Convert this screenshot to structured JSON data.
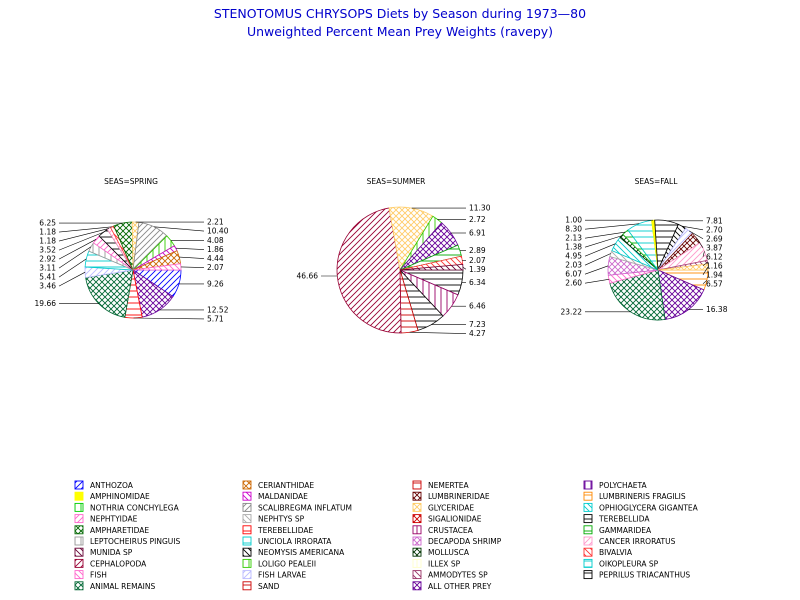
{
  "chart_data": {
    "type": "pie",
    "title": "STENOTOMUS CHRYSOPS Diets by Season during 1973—80",
    "subtitle": "Unweighted Percent Mean Prey Weights (ravepy)",
    "legend_position": "bottom",
    "categories": [
      {
        "name": "ANTHOZOA",
        "color": "#0000ff",
        "pattern": "diag-r"
      },
      {
        "name": "CERIANTHIDAE",
        "color": "#cc6600",
        "pattern": "cross"
      },
      {
        "name": "NEMERTEA",
        "color": "#cc0000",
        "pattern": "horiz"
      },
      {
        "name": "POLYCHAETA",
        "color": "#660099",
        "pattern": "vert"
      },
      {
        "name": "AMPHINOMIDAE",
        "color": "#ffff00",
        "pattern": "solid"
      },
      {
        "name": "MALDANIDAE",
        "color": "#cc00cc",
        "pattern": "diag-l"
      },
      {
        "name": "LUMBRINERIDAE",
        "color": "#660000",
        "pattern": "cross"
      },
      {
        "name": "LUMBRINERIS FRAGILIS",
        "color": "#ff8800",
        "pattern": "horiz"
      },
      {
        "name": "NOTHRIA CONCHYLEGA",
        "color": "#00cc00",
        "pattern": "vert"
      },
      {
        "name": "SCALIBREGMA INFLATUM",
        "color": "#888888",
        "pattern": "diag-r"
      },
      {
        "name": "GLYCERIDAE",
        "color": "#ffcc66",
        "pattern": "cross"
      },
      {
        "name": "OPHIOGLYCERA GIGANTEA",
        "color": "#00cccc",
        "pattern": "diag-l"
      },
      {
        "name": "NEPHTYIDAE",
        "color": "#ff66cc",
        "pattern": "diag-r"
      },
      {
        "name": "NEPHTYS SP",
        "color": "#aaaaaa",
        "pattern": "diag-l"
      },
      {
        "name": "SIGALIONIDAE",
        "color": "#cc0000",
        "pattern": "cross"
      },
      {
        "name": "TEREBELLIDA",
        "color": "#000000",
        "pattern": "horiz"
      },
      {
        "name": "AMPHARETIDAE",
        "color": "#006600",
        "pattern": "cross"
      },
      {
        "name": "TEREBELLIDAE",
        "color": "#ff0000",
        "pattern": "horiz"
      },
      {
        "name": "CRUSTACEA",
        "color": "#990066",
        "pattern": "vert"
      },
      {
        "name": "GAMMARIDEA",
        "color": "#00aa00",
        "pattern": "horiz"
      },
      {
        "name": "LEPTOCHEIRUS PINGUIS",
        "color": "#999999",
        "pattern": "vert"
      },
      {
        "name": "UNCIOLA IRRORATA",
        "color": "#00cccc",
        "pattern": "horiz"
      },
      {
        "name": "DECAPODA SHRIMP",
        "color": "#cc66cc",
        "pattern": "cross"
      },
      {
        "name": "CANCER IRRORATUS",
        "color": "#ff99cc",
        "pattern": "diag-r"
      },
      {
        "name": "MUNIDA SP",
        "color": "#660033",
        "pattern": "diag-l"
      },
      {
        "name": "NEOMYSIS AMERICANA",
        "color": "#000000",
        "pattern": "diag-l"
      },
      {
        "name": "MOLLUSCA",
        "color": "#003300",
        "pattern": "cross"
      },
      {
        "name": "BIVALVIA",
        "color": "#ff3333",
        "pattern": "diag-l"
      },
      {
        "name": "CEPHALOPODA",
        "color": "#990033",
        "pattern": "diag-r"
      },
      {
        "name": "LOLIGO PEALEII",
        "color": "#33cc00",
        "pattern": "vert"
      },
      {
        "name": "ILLEX SP",
        "color": "#ffffcc",
        "pattern": "vert"
      },
      {
        "name": "OIKOPLEURA SP",
        "color": "#00cccc",
        "pattern": "horiz"
      },
      {
        "name": "FISH",
        "color": "#ff66cc",
        "pattern": "diag-l"
      },
      {
        "name": "FISH LARVAE",
        "color": "#bbbbff",
        "pattern": "diag-r"
      },
      {
        "name": "AMMODYTES SP",
        "color": "#993366",
        "pattern": "diag-l"
      },
      {
        "name": "PEPRILUS TRIACANTHUS",
        "color": "#000000",
        "pattern": "horiz"
      },
      {
        "name": "ANIMAL REMAINS",
        "color": "#006633",
        "pattern": "cross"
      },
      {
        "name": "SAND",
        "color": "#cc0000",
        "pattern": "horiz"
      },
      {
        "name": "ALL OTHER PREY",
        "color": "#660099",
        "pattern": "cross"
      }
    ],
    "pies": [
      {
        "label": "SEAS=SPRING",
        "slices": [
          {
            "category": "ANTHOZOA",
            "value": 9.26
          },
          {
            "category": "ALL OTHER PREY",
            "value": 12.52
          },
          {
            "category": "TEREBELLIDAE",
            "value": 5.71
          },
          {
            "category": "ANIMAL REMAINS",
            "value": 19.66
          },
          {
            "category": "FISH LARVAE",
            "value": 3.46
          },
          {
            "category": "UNCIOLA IRRORATA",
            "value": 5.41
          },
          {
            "category": "LEPTOCHEIRUS PINGUIS",
            "value": 3.11
          },
          {
            "category": "NEPHTYIDAE",
            "value": 2.92
          },
          {
            "category": "TEREBELLIDA",
            "value": 3.52
          },
          {
            "category": "CANCER IRRORATUS",
            "value": 1.18
          },
          {
            "category": "BIVALVIA",
            "value": 1.18
          },
          {
            "category": "AMPHARETIDAE",
            "value": 6.25
          },
          {
            "category": "GLYCERIDAE",
            "value": 2.21
          },
          {
            "category": "SCALIBREGMA INFLATUM",
            "value": 10.4
          },
          {
            "category": "LOLIGO PEALEII",
            "value": 4.08
          },
          {
            "category": "MALDANIDAE",
            "value": 1.86
          },
          {
            "category": "CERIANTHIDAE",
            "value": 4.44
          },
          {
            "category": "FISH",
            "value": 2.07
          }
        ]
      },
      {
        "label": "SEAS=SUMMER",
        "slices": [
          {
            "category": "TEREBELLIDA",
            "value": 6.34
          },
          {
            "category": "CRUSTACEA",
            "value": 6.46
          },
          {
            "category": "PEPRILUS TRIACANTHUS",
            "value": 7.23
          },
          {
            "category": "SAND",
            "value": 4.27
          },
          {
            "category": "CEPHALOPODA",
            "value": 46.66
          },
          {
            "category": "GLYCERIDAE",
            "value": 11.3
          },
          {
            "category": "LOLIGO PEALEII",
            "value": 2.72
          },
          {
            "category": "ALL OTHER PREY",
            "value": 6.91
          },
          {
            "category": "GAMMARIDEA",
            "value": 2.89
          },
          {
            "category": "BIVALVIA",
            "value": 2.07
          },
          {
            "category": "MUNIDA SP",
            "value": 1.39
          }
        ]
      },
      {
        "label": "SEAS=FALL",
        "slices": [
          {
            "category": "LUMBRINERIS FRAGILIS",
            "value": 6.57
          },
          {
            "category": "ALL OTHER PREY",
            "value": 16.38
          },
          {
            "category": "ANIMAL REMAINS",
            "value": 23.22
          },
          {
            "category": "FISH",
            "value": 2.6
          },
          {
            "category": "DECAPODA SHRIMP",
            "value": 6.07
          },
          {
            "category": "NEPHTYS SP",
            "value": 2.03
          },
          {
            "category": "OPHIOGLYCERA GIGANTEA",
            "value": 4.95
          },
          {
            "category": "MOLLUSCA",
            "value": 1.38
          },
          {
            "category": "GAMMARIDEA",
            "value": 2.13
          },
          {
            "category": "UNCIOLA IRRORATA",
            "value": 8.3
          },
          {
            "category": "AMPHINOMIDAE",
            "value": 1.0
          },
          {
            "category": "TEREBELLIDA",
            "value": 7.81
          },
          {
            "category": "NEOMYSIS AMERICANA",
            "value": 2.7
          },
          {
            "category": "FISH LARVAE",
            "value": 2.69
          },
          {
            "category": "LUMBRINERIDAE",
            "value": 3.87
          },
          {
            "category": "CANCER IRRORATUS",
            "value": 6.12
          },
          {
            "category": "AMMODYTES SP",
            "value": 1.16
          },
          {
            "category": "GLYCERIDAE",
            "value": 1.94
          }
        ]
      }
    ]
  }
}
